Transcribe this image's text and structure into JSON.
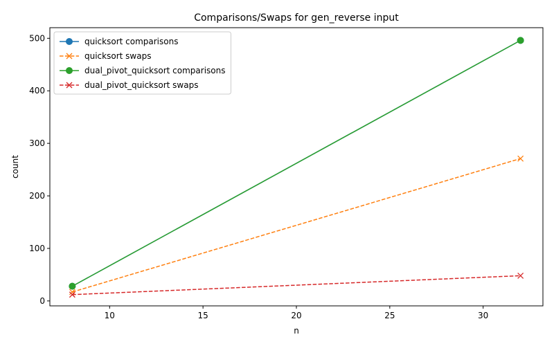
{
  "chart_data": {
    "type": "line",
    "title": "Comparisons/Swaps for gen_reverse input",
    "xlabel": "n",
    "ylabel": "count",
    "x": [
      8,
      32
    ],
    "xlim": [
      6.8,
      33.2
    ],
    "ylim": [
      -9.4,
      520.2
    ],
    "xticks": [
      10,
      15,
      20,
      25,
      30
    ],
    "yticks": [
      0,
      100,
      200,
      300,
      400,
      500
    ],
    "grid": false,
    "legend_position": "upper-left",
    "series": [
      {
        "name": "quicksort comparisons",
        "values": [
          28,
          496
        ],
        "color": "#1f77b4",
        "marker": "circle",
        "linestyle": "solid"
      },
      {
        "name": "quicksort swaps",
        "values": [
          17,
          271
        ],
        "color": "#ff7f0e",
        "marker": "x",
        "linestyle": "dashed"
      },
      {
        "name": "dual_pivot_quicksort comparisons",
        "values": [
          28,
          496
        ],
        "color": "#2ca02c",
        "marker": "circle",
        "linestyle": "solid"
      },
      {
        "name": "dual_pivot_quicksort swaps",
        "values": [
          12,
          48
        ],
        "color": "#d62728",
        "marker": "x",
        "linestyle": "dashed"
      }
    ]
  }
}
